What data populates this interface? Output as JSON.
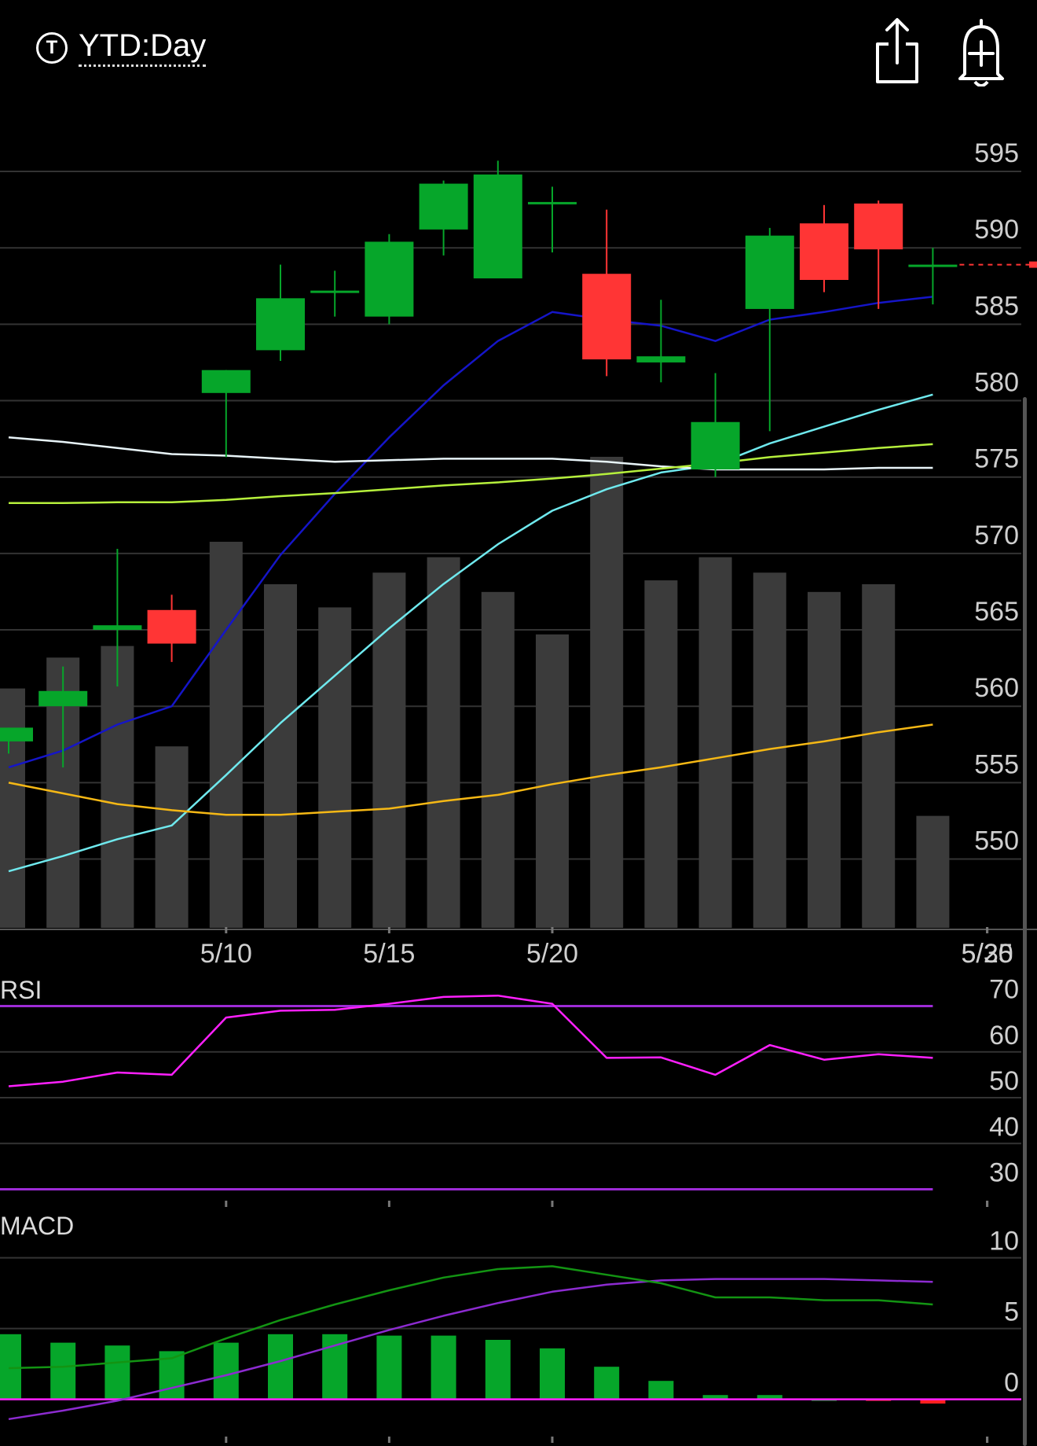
{
  "header": {
    "badge_letter": "T",
    "range_label": "YTD:Day",
    "share_icon": "share-icon",
    "alert_icon": "alert-bell-add-icon"
  },
  "colors": {
    "up": "#06a62a",
    "down": "#ff3535",
    "volume": "#3b3b3b",
    "ma_blue": "#1515c8",
    "ma_cyan": "#6fe9ee",
    "ma_white": "#e8f4f8",
    "ma_green": "#b6f03c",
    "ma_orange": "#f5b815",
    "rsi": "#ff20ff",
    "rsi_band": "#9d2bd6",
    "macd_line": "#139413",
    "macd_signal": "#8c2bd0",
    "macd_hist_pos": "#06a62a",
    "macd_hist_neg": "#ff2020",
    "grid": "#333333",
    "last_price_marker": "#ff3535"
  },
  "chart_data": [
    {
      "type": "candlestick",
      "panel": "price",
      "x_ticks": [
        "5/10",
        "5/15",
        "5/20",
        "5/25",
        "5/30"
      ],
      "y_ticks": [
        595,
        590,
        585,
        580,
        575,
        570,
        565,
        560,
        555,
        550
      ],
      "ylim": [
        545.5,
        598.5
      ],
      "grid": true,
      "candles": [
        {
          "date": "5/6",
          "open": 557.7,
          "high": 558.6,
          "low": 556.9,
          "close": 558.6
        },
        {
          "date": "5/7",
          "open": 560.0,
          "high": 562.6,
          "low": 556.0,
          "close": 561.0
        },
        {
          "date": "5/8",
          "open": 565.0,
          "high": 570.3,
          "low": 561.3,
          "close": 565.3
        },
        {
          "date": "5/9",
          "open": 566.3,
          "high": 567.3,
          "low": 562.9,
          "close": 564.1
        },
        {
          "date": "5/10",
          "open": 580.5,
          "high": 582.0,
          "low": 576.3,
          "close": 582.0
        },
        {
          "date": "5/13",
          "open": 583.3,
          "high": 588.9,
          "low": 582.6,
          "close": 586.7
        },
        {
          "date": "5/14",
          "open": 587.2,
          "high": 588.5,
          "low": 585.5,
          "close": 587.2
        },
        {
          "date": "5/15",
          "open": 585.5,
          "high": 590.9,
          "low": 585.0,
          "close": 590.4
        },
        {
          "date": "5/16",
          "open": 591.2,
          "high": 594.4,
          "low": 589.5,
          "close": 594.2
        },
        {
          "date": "5/17",
          "open": 588.0,
          "high": 595.7,
          "low": 588.0,
          "close": 594.8
        },
        {
          "date": "5/20",
          "open": 593.0,
          "high": 594.0,
          "low": 589.7,
          "close": 593.0
        },
        {
          "date": "5/21",
          "open": 588.3,
          "high": 592.5,
          "low": 581.6,
          "close": 582.7
        },
        {
          "date": "5/22",
          "open": 582.5,
          "high": 586.6,
          "low": 581.2,
          "close": 582.9
        },
        {
          "date": "5/23",
          "open": 575.5,
          "high": 581.8,
          "low": 575.0,
          "close": 578.6
        },
        {
          "date": "5/24",
          "open": 586.0,
          "high": 591.3,
          "low": 578.0,
          "close": 590.8
        },
        {
          "date": "5/27",
          "open": 591.6,
          "high": 592.8,
          "low": 587.1,
          "close": 587.9
        },
        {
          "date": "5/28",
          "open": 592.9,
          "high": 593.1,
          "low": 586.0,
          "close": 589.9
        },
        {
          "date": "5/29",
          "open": 588.9,
          "high": 590.0,
          "low": 586.3,
          "close": 588.9
        }
      ],
      "last_price": 588.9,
      "volume_relative": [
        0.62,
        0.7,
        0.73,
        0.47,
        1.0,
        0.89,
        0.83,
        0.92,
        0.96,
        0.87,
        0.76,
        1.22,
        0.9,
        0.96,
        0.92,
        0.87,
        0.89,
        0.29
      ],
      "moving_averages": [
        {
          "color_key": "ma_blue",
          "values": [
            556.0,
            557.1,
            558.8,
            560.0,
            565.0,
            569.9,
            573.9,
            577.6,
            581.0,
            583.9,
            585.8,
            585.3,
            584.9,
            583.9,
            585.3,
            585.8,
            586.4,
            586.8
          ]
        },
        {
          "color_key": "ma_cyan",
          "values": [
            549.2,
            550.2,
            551.3,
            552.2,
            555.5,
            558.9,
            562.0,
            565.1,
            568.0,
            570.6,
            572.8,
            574.2,
            575.3,
            575.8,
            577.2,
            578.3,
            579.4,
            580.4
          ]
        },
        {
          "color_key": "ma_white",
          "values": [
            577.6,
            577.3,
            576.9,
            576.5,
            576.4,
            576.2,
            576.0,
            576.1,
            576.2,
            576.2,
            576.2,
            576.0,
            575.7,
            575.5,
            575.5,
            575.5,
            575.6,
            575.6
          ]
        },
        {
          "color_key": "ma_green",
          "values": [
            573.3,
            573.3,
            573.35,
            573.35,
            573.5,
            573.75,
            573.95,
            574.2,
            574.45,
            574.65,
            574.9,
            575.2,
            575.55,
            575.9,
            576.3,
            576.6,
            576.9,
            577.15
          ]
        },
        {
          "color_key": "ma_orange",
          "values": [
            555.0,
            554.3,
            553.6,
            553.2,
            552.9,
            552.9,
            553.1,
            553.3,
            553.8,
            554.2,
            554.9,
            555.5,
            556.0,
            556.6,
            557.2,
            557.7,
            558.3,
            558.8
          ]
        }
      ]
    },
    {
      "type": "line",
      "panel": "rsi",
      "title": "RSI",
      "y_ticks": [
        70,
        60,
        50,
        40,
        30
      ],
      "ylim": [
        27,
        72.5
      ],
      "bands": [
        70,
        30
      ],
      "grid": true,
      "values": [
        52.5,
        53.5,
        55.5,
        55.0,
        67.5,
        69.0,
        69.2,
        70.5,
        72.0,
        72.3,
        70.5,
        58.7,
        58.8,
        55.0,
        61.5,
        58.3,
        59.5,
        58.7
      ]
    },
    {
      "type": "line",
      "panel": "macd",
      "title": "MACD",
      "y_ticks": [
        10,
        5,
        0
      ],
      "ylim": [
        -3.3,
        12.2
      ],
      "grid": true,
      "macd": [
        2.2,
        2.3,
        2.6,
        2.9,
        4.3,
        5.6,
        6.7,
        7.7,
        8.6,
        9.2,
        9.4,
        8.8,
        8.2,
        7.2,
        7.2,
        7.0,
        7.0,
        6.7
      ],
      "signal": [
        -1.4,
        -0.8,
        -0.1,
        0.8,
        1.7,
        2.7,
        3.8,
        4.9,
        5.9,
        6.8,
        7.6,
        8.1,
        8.4,
        8.5,
        8.5,
        8.5,
        8.4,
        8.3
      ],
      "histogram": [
        4.6,
        4.0,
        3.8,
        3.4,
        4.0,
        4.6,
        4.6,
        4.5,
        4.5,
        4.2,
        3.6,
        2.3,
        1.3,
        0.3,
        0.3,
        0.0,
        -0.1,
        -0.3
      ]
    }
  ]
}
